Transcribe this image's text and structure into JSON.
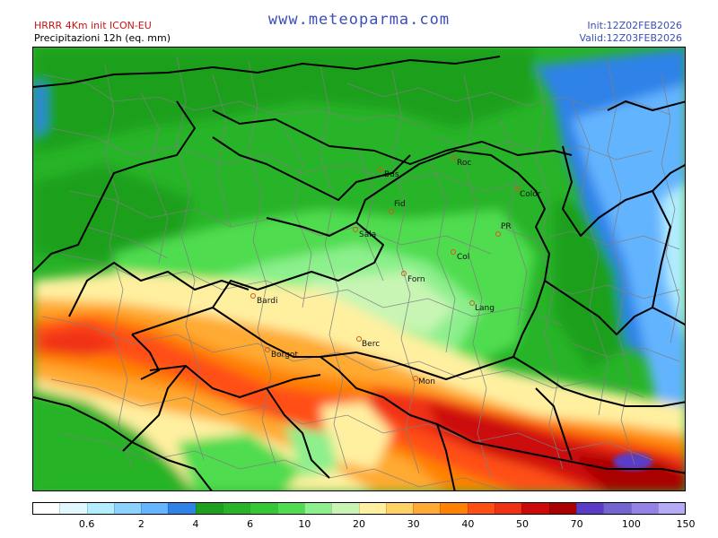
{
  "header": {
    "model_line": "HRRR 4Km init ICON-EU",
    "field_line": "Precipitazioni 12h (eq. mm)",
    "site": "www.meteoparma.com",
    "init": "Init:12Z02FEB2026",
    "valid": "Valid:12Z03FEB2026"
  },
  "cities": [
    {
      "name": "Roc"
    },
    {
      "name": "Bus"
    },
    {
      "name": "Color"
    },
    {
      "name": "Fid"
    },
    {
      "name": "PR"
    },
    {
      "name": "Sala"
    },
    {
      "name": "Col"
    },
    {
      "name": "Forn"
    },
    {
      "name": "Bardi"
    },
    {
      "name": "Lang"
    },
    {
      "name": "Borgot"
    },
    {
      "name": "Berc"
    },
    {
      "name": "Mon"
    }
  ],
  "legend": {
    "colors": [
      "#ffffff",
      "#e2f8ff",
      "#b2eeff",
      "#8cd2ff",
      "#64b4ff",
      "#2f82e8",
      "#1ea01e",
      "#28b428",
      "#34c834",
      "#50dc50",
      "#8cf08c",
      "#c8f5b4",
      "#fff0a0",
      "#ffd264",
      "#ffaa32",
      "#ff8200",
      "#ff5014",
      "#f03214",
      "#cc0a0a",
      "#aa0000",
      "#5a3cc8",
      "#7364d2",
      "#9682e6",
      "#b4aaf5"
    ],
    "labels": [
      "0.6",
      "2",
      "4",
      "6",
      "10",
      "20",
      "30",
      "40",
      "50",
      "70",
      "100",
      "150"
    ]
  }
}
